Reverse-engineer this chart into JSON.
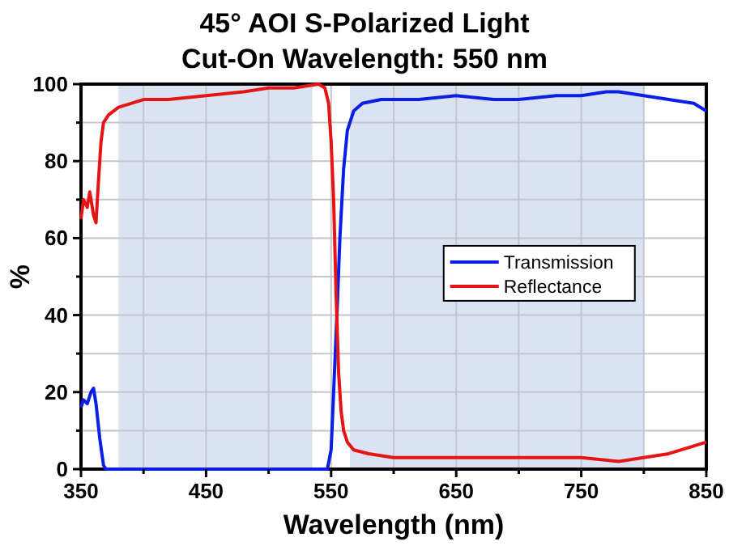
{
  "chart_data": {
    "type": "line",
    "title": "45° AOI S-Polarized Light",
    "subtitle": "Cut-On Wavelength: 550 nm",
    "xlabel": "Wavelength (nm)",
    "ylabel": "%",
    "xlim": [
      350,
      850
    ],
    "ylim": [
      0,
      100
    ],
    "xticks": [
      350,
      {
        "value": 400,
        "label": null
      },
      450,
      {
        "value": 500,
        "label": null
      },
      550,
      {
        "value": 600,
        "label": null
      },
      650,
      {
        "value": 700,
        "label": null
      },
      750,
      {
        "value": 800,
        "label": null
      },
      850
    ],
    "yticks": [
      0,
      {
        "value": 10,
        "label": null
      },
      20,
      {
        "value": 30,
        "label": null
      },
      40,
      {
        "value": 50,
        "label": null
      },
      60,
      {
        "value": 70,
        "label": null
      },
      80,
      {
        "value": 90,
        "label": null
      },
      100
    ],
    "grid": true,
    "legend": "right",
    "line_style": "solid",
    "bands": [
      {
        "axis": "x",
        "from": 380,
        "to": 535,
        "color": "#dbe3f3"
      },
      {
        "axis": "x",
        "from": 565,
        "to": 800,
        "color": "#dbe3f3"
      }
    ],
    "series": [
      {
        "name": "Transmission",
        "color": "#0a1ee6",
        "x": [
          350,
          352,
          355,
          358,
          360,
          362,
          365,
          368,
          370,
          400,
          450,
          500,
          540,
          547,
          550,
          552,
          555,
          557,
          560,
          563,
          568,
          575,
          590,
          600,
          620,
          650,
          680,
          700,
          730,
          750,
          770,
          780,
          800,
          820,
          840,
          850
        ],
        "values": [
          16,
          18,
          17,
          20,
          21,
          17,
          8,
          1,
          0,
          0,
          0,
          0,
          0,
          0,
          5,
          20,
          43,
          60,
          78,
          88,
          93,
          95,
          96,
          96,
          96,
          97,
          96,
          96,
          97,
          97,
          98,
          98,
          97,
          96,
          95,
          93
        ]
      },
      {
        "name": "Reflectance",
        "color": "#e61414",
        "x": [
          350,
          352,
          355,
          357,
          360,
          362,
          364,
          366,
          368,
          372,
          380,
          390,
          400,
          420,
          450,
          480,
          500,
          520,
          540,
          545,
          548,
          550,
          552,
          554,
          556,
          558,
          560,
          563,
          568,
          580,
          600,
          650,
          700,
          750,
          780,
          800,
          820,
          840,
          850
        ],
        "values": [
          65,
          70,
          68,
          72,
          66,
          64,
          75,
          85,
          90,
          92,
          94,
          95,
          96,
          96,
          97,
          98,
          99,
          99,
          100,
          99,
          95,
          85,
          70,
          45,
          25,
          15,
          10,
          7,
          5,
          4,
          3,
          3,
          3,
          3,
          2,
          3,
          4,
          6,
          7
        ]
      }
    ]
  }
}
